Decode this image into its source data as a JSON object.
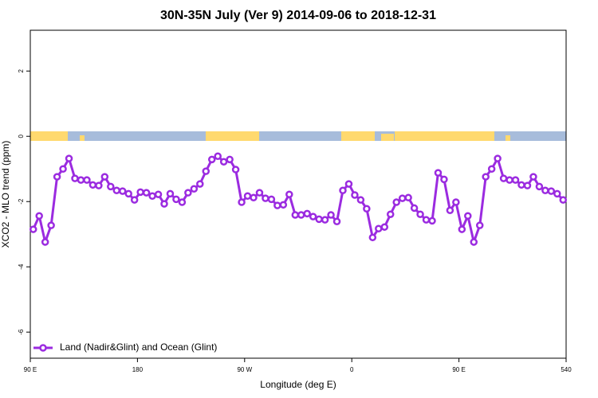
{
  "chart_data": {
    "type": "line",
    "title": "30N-35N July (Ver 9)   2014-09-06 to 2018-12-31",
    "x_label": "Longitude (deg E)",
    "y_label": "XCO2 - MLO trend (ppm)",
    "x": [
      92.5,
      97.5,
      102.5,
      107.5,
      112.5,
      117.5,
      122.5,
      127.5,
      132.5,
      137.5,
      142.5,
      147.5,
      152.5,
      157.5,
      162.5,
      167.5,
      172.5,
      177.5,
      182.5,
      187.5,
      192.5,
      197.5,
      202.5,
      207.5,
      212.5,
      217.5,
      222.5,
      227.5,
      232.5,
      237.5,
      242.5,
      247.5,
      252.5,
      257.5,
      262.5,
      267.5,
      272.5,
      277.5,
      282.5,
      287.5,
      292.5,
      297.5,
      302.5,
      307.5,
      312.5,
      317.5,
      322.5,
      327.5,
      332.5,
      337.5,
      342.5,
      347.5,
      352.5,
      357.5,
      362.5,
      367.5,
      372.5,
      377.5,
      382.5,
      387.5,
      392.5,
      397.5,
      402.5,
      407.5,
      412.5,
      417.5,
      422.5,
      427.5,
      432.5,
      437.5,
      442.5,
      447.5,
      452.5,
      457.5,
      462.5,
      467.5,
      472.5,
      477.5,
      482.5,
      487.5,
      492.5,
      497.5,
      502.5,
      507.5,
      512.5,
      517.5,
      522.5,
      527.5,
      532.5,
      537.5
    ],
    "series": [
      {
        "name": "Land (Nadir&Glint) and Ocean (Glint)",
        "color": "#9b2be0",
        "values": [
          -2.85,
          -2.44,
          -3.24,
          -2.73,
          -1.24,
          -1.0,
          -0.68,
          -1.29,
          -1.34,
          -1.34,
          -1.49,
          -1.51,
          -1.24,
          -1.54,
          -1.66,
          -1.68,
          -1.76,
          -1.95,
          -1.71,
          -1.73,
          -1.83,
          -1.78,
          -2.07,
          -1.76,
          -1.93,
          -2.02,
          -1.73,
          -1.61,
          -1.46,
          -1.07,
          -0.71,
          -0.61,
          -0.78,
          -0.71,
          -1.02,
          -2.02,
          -1.83,
          -1.88,
          -1.73,
          -1.9,
          -1.93,
          -2.12,
          -2.1,
          -1.78,
          -2.41,
          -2.41,
          -2.37,
          -2.46,
          -2.54,
          -2.56,
          -2.41,
          -2.61,
          -1.66,
          -1.46,
          -1.8,
          -1.95,
          -2.22,
          -3.1,
          -2.83,
          -2.78,
          -2.39,
          -2.02,
          -1.9,
          -1.88,
          -2.2,
          -2.39,
          -2.56,
          -2.59,
          -1.12,
          -1.32,
          -2.27,
          -2.02,
          -2.85,
          -2.44,
          -3.24,
          -2.73,
          -1.24,
          -1.0,
          -0.68,
          -1.29,
          -1.34,
          -1.34,
          -1.49,
          -1.51,
          -1.24,
          -1.54,
          -1.66,
          -1.68,
          -1.76,
          -1.95
        ]
      }
    ],
    "xlim": [
      90,
      540
    ],
    "xticks": [
      {
        "value": 90,
        "label": "90 E"
      },
      180,
      {
        "value": 270,
        "label": "90 W"
      },
      {
        "value": 360,
        "label": "0"
      },
      {
        "value": 450,
        "label": "90 E"
      },
      540
    ],
    "ylim": [
      -6.8,
      3.25
    ],
    "yticks": [
      2,
      0,
      -2,
      -4,
      -6
    ],
    "legend": "bottom-left"
  }
}
